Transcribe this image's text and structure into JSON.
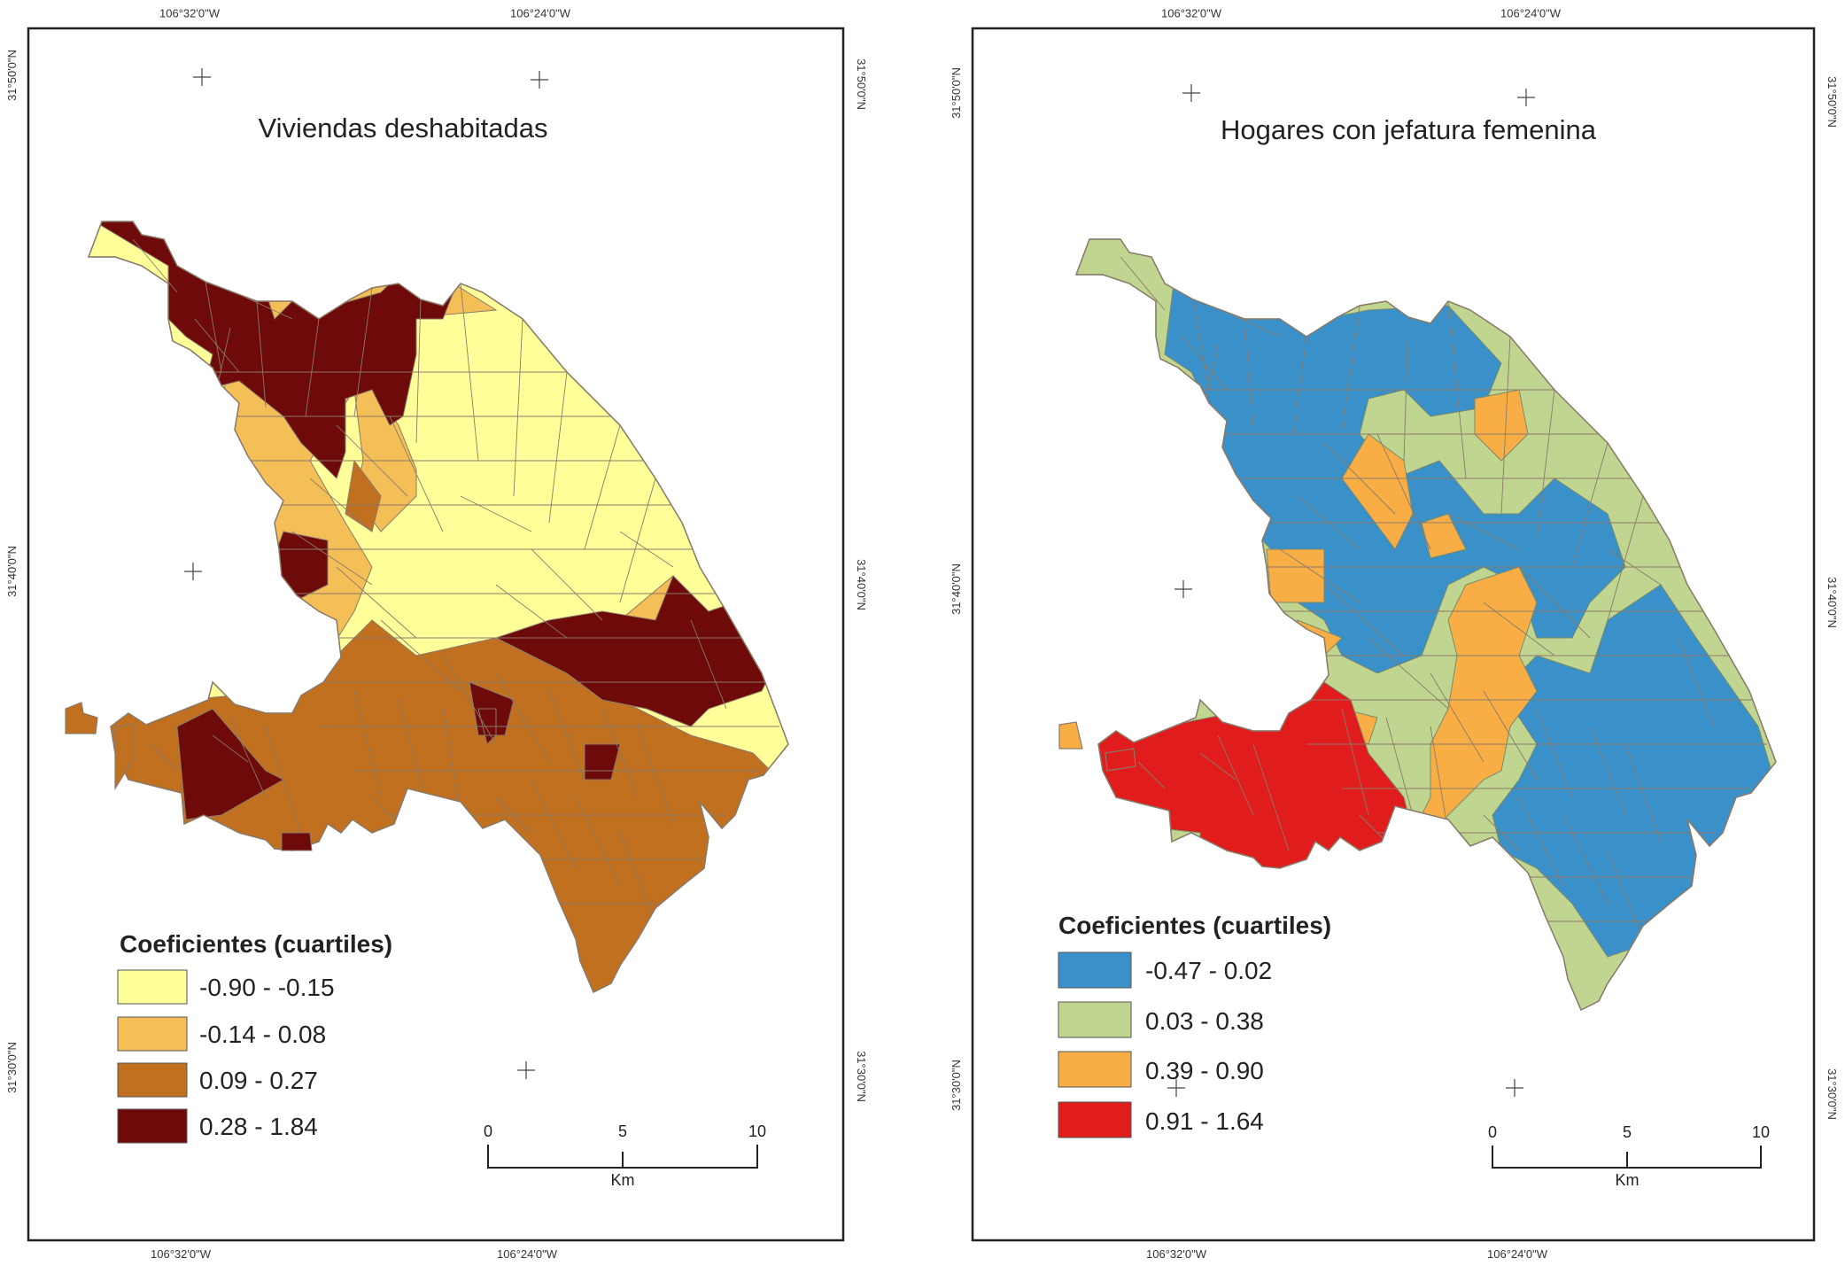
{
  "colors": {
    "viviendas": [
      "#ffff99",
      "#f4bf57",
      "#c0701e",
      "#6e0a0a"
    ],
    "hogares": [
      "#3a90c8",
      "#c0d690",
      "#f8ae45",
      "#e01c1c"
    ]
  },
  "maps": [
    {
      "id": "viviendas",
      "title": "Viviendas deshabitadas",
      "top_labels": [
        "106°32'0\"W",
        "106°24'0\"W"
      ],
      "bottom_labels": [
        "106°32'0\"W",
        "106°24'0\"W"
      ],
      "left_labels": [
        "31°50'0\"N",
        "31°40'0\"N",
        "31°30'0\"N"
      ],
      "right_labels": [
        "31°50'0\"N",
        "31°40'0\"N",
        "31°30'0\"N"
      ],
      "legend": {
        "title": "Coeficientes (cuartiles)",
        "classes": [
          "-0.90 - -0.15",
          "-0.14 - 0.08",
          "0.09 - 0.27",
          "0.28 - 1.84"
        ]
      },
      "scale": {
        "ticks": [
          "0",
          "5",
          "10"
        ],
        "unit": "Km"
      }
    },
    {
      "id": "hogares",
      "title": "Hogares con jefatura femenina",
      "top_labels": [
        "106°32'0\"W",
        "106°24'0\"W"
      ],
      "bottom_labels": [
        "106°32'0\"W",
        "106°24'0\"W"
      ],
      "left_labels": [
        "31°50'0\"N",
        "31°40'0\"N",
        "31°30'0\"N"
      ],
      "right_labels": [
        "31°50'0\"N",
        "31°40'0\"N",
        "31°30'0\"N"
      ],
      "legend": {
        "title": "Coeficientes (cuartiles)",
        "classes": [
          "-0.47 - 0.02",
          "0.03 - 0.38",
          "0.39 - 0.90",
          "0.91 - 1.64"
        ]
      },
      "scale": {
        "ticks": [
          "0",
          "5",
          "10"
        ],
        "unit": "Km"
      }
    }
  ]
}
